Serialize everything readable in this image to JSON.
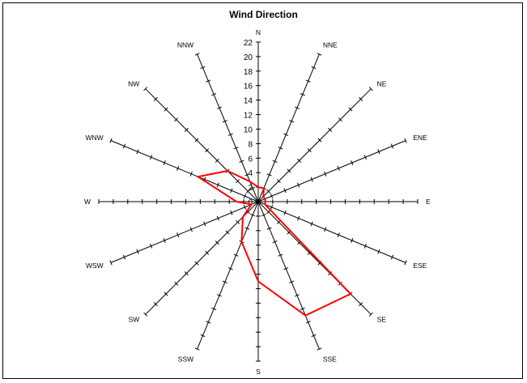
{
  "chart_data": {
    "type": "radar",
    "title": "Wind Direction",
    "categories": [
      "N",
      "NNE",
      "NE",
      "ENE",
      "E",
      "ESE",
      "SE",
      "SSE",
      "S",
      "SSW",
      "SW",
      "WSW",
      "W",
      "WNW",
      "NW",
      "NNW"
    ],
    "series": [
      {
        "values": [
          2,
          2,
          1,
          1,
          1,
          1,
          18,
          17,
          11,
          6,
          3,
          1,
          3,
          9,
          6,
          3
        ]
      }
    ],
    "radial_axis": {
      "range": [
        0,
        22
      ],
      "ticks": [
        "0",
        "2",
        "4",
        "6",
        "8",
        "10",
        "12",
        "14",
        "16",
        "18",
        "20",
        "22"
      ]
    },
    "colors": {
      "series": "#ff0000",
      "axes": "#000000"
    }
  }
}
